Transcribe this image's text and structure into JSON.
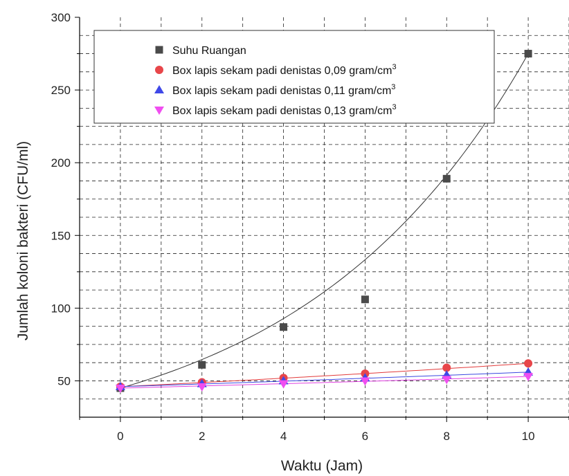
{
  "chart_data": {
    "type": "scatter",
    "xlabel": "Waktu (Jam)",
    "ylabel": "Jumlah koloni bakteri (CFU/ml)",
    "xlim": [
      -1,
      11
    ],
    "ylim": [
      25,
      300
    ],
    "xticks": [
      0,
      2,
      4,
      6,
      8,
      10
    ],
    "yticks": [
      50,
      100,
      150,
      200,
      250,
      300
    ],
    "grid": true,
    "legend_position": "top-left",
    "x": [
      0,
      2,
      4,
      6,
      8,
      10
    ],
    "series": [
      {
        "name": "Suhu Ruangan",
        "marker": "square",
        "color": "#4a4a4a",
        "fit_color": "#333333",
        "values": [
          45,
          61,
          87,
          106,
          189,
          275
        ]
      },
      {
        "name_main": "Box lapis sekam padi denistas 0,09 gram/cm",
        "name_sup": "3",
        "marker": "circle",
        "color": "#e8464a",
        "fit_color": "#e23a3a",
        "values": [
          46,
          49,
          52,
          55,
          59,
          62
        ]
      },
      {
        "name_main": "Box lapis sekam padi denistas 0,11 gram/cm",
        "name_sup": "3",
        "marker": "triangle-up",
        "color": "#3f48e8",
        "fit_color": "#3a48e0",
        "values": [
          46,
          48,
          50,
          52,
          54,
          56
        ]
      },
      {
        "name_main": "Box lapis sekam padi denistas 0,13 gram/cm",
        "name_sup": "3",
        "marker": "triangle-down",
        "color": "#f04ef0",
        "fit_color": "#e040e0",
        "values": [
          45,
          46,
          48,
          50,
          51,
          53
        ]
      }
    ]
  }
}
